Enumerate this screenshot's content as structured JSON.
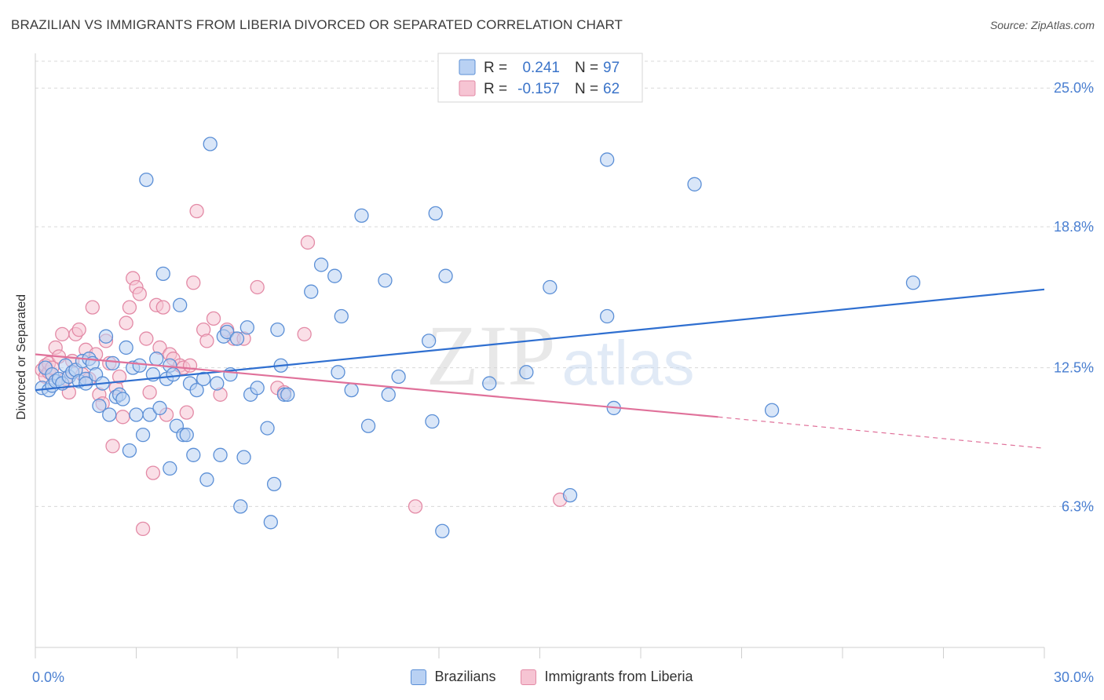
{
  "title": "BRAZILIAN VS IMMIGRANTS FROM LIBERIA DIVORCED OR SEPARATED CORRELATION CHART",
  "source": "Source: ZipAtlas.com",
  "watermark": {
    "zip": "ZIP",
    "atlas": "atlas"
  },
  "colors": {
    "blue_fill": "#b9d1f3",
    "blue_stroke": "#5b8fd6",
    "blue_line": "#2f6fd0",
    "pink_fill": "#f6c4d3",
    "pink_stroke": "#e38aa6",
    "pink_line": "#e0719a",
    "axis_label": "#4a7fd1",
    "grid": "#d8d8d8"
  },
  "legend_box": {
    "rows": [
      {
        "r_label": "R =",
        "r_value": "0.241",
        "n_label": "N =",
        "n_value": "97",
        "series": "blue"
      },
      {
        "r_label": "R =",
        "r_value": "-0.157",
        "n_label": "N =",
        "n_value": "62",
        "series": "pink"
      }
    ]
  },
  "bottom_legend": {
    "items": [
      {
        "label": "Brazilians",
        "series": "blue"
      },
      {
        "label": "Immigrants from Liberia",
        "series": "pink"
      }
    ]
  },
  "chart_data": {
    "type": "scatter",
    "title": "BRAZILIAN VS IMMIGRANTS FROM LIBERIA DIVORCED OR SEPARATED CORRELATION CHART",
    "xlabel": "",
    "ylabel": "Divorced or Separated",
    "xlim": [
      0,
      30
    ],
    "ylim": [
      0,
      26.2
    ],
    "x_tick_labels": [
      {
        "value": 0,
        "label": "0.0%"
      },
      {
        "value": 30,
        "label": "30.0%"
      }
    ],
    "y_ticks": [
      {
        "value": 6.3,
        "label": "6.3%"
      },
      {
        "value": 12.5,
        "label": "12.5%"
      },
      {
        "value": 18.8,
        "label": "18.8%"
      },
      {
        "value": 25.0,
        "label": "25.0%"
      }
    ],
    "grid": "horizontal dashed",
    "legend_position": "top-center",
    "series": [
      {
        "name": "Brazilians",
        "color": "blue",
        "trend": {
          "x": [
            0,
            30
          ],
          "y": [
            11.5,
            16.0
          ]
        },
        "points": [
          [
            0.2,
            11.6
          ],
          [
            0.3,
            12.5
          ],
          [
            0.4,
            11.5
          ],
          [
            0.5,
            12.2
          ],
          [
            0.5,
            11.7
          ],
          [
            0.6,
            11.9
          ],
          [
            0.7,
            12.0
          ],
          [
            0.8,
            11.8
          ],
          [
            0.9,
            12.6
          ],
          [
            1.0,
            12.1
          ],
          [
            1.1,
            12.3
          ],
          [
            1.2,
            12.4
          ],
          [
            1.3,
            11.9
          ],
          [
            1.4,
            12.8
          ],
          [
            1.5,
            12.0
          ],
          [
            1.5,
            11.8
          ],
          [
            1.6,
            12.9
          ],
          [
            1.7,
            12.7
          ],
          [
            1.8,
            12.2
          ],
          [
            1.9,
            10.8
          ],
          [
            2.0,
            11.8
          ],
          [
            2.1,
            13.9
          ],
          [
            2.2,
            10.4
          ],
          [
            2.3,
            12.7
          ],
          [
            2.4,
            11.2
          ],
          [
            2.5,
            11.3
          ],
          [
            2.6,
            11.1
          ],
          [
            2.7,
            13.4
          ],
          [
            2.8,
            8.8
          ],
          [
            2.9,
            12.5
          ],
          [
            3.0,
            10.4
          ],
          [
            3.1,
            12.6
          ],
          [
            3.2,
            9.5
          ],
          [
            3.3,
            20.9
          ],
          [
            3.4,
            10.4
          ],
          [
            3.5,
            12.2
          ],
          [
            3.6,
            12.9
          ],
          [
            3.7,
            10.7
          ],
          [
            3.8,
            16.7
          ],
          [
            3.9,
            12.0
          ],
          [
            4.0,
            8.0
          ],
          [
            4.0,
            12.6
          ],
          [
            4.1,
            12.2
          ],
          [
            4.2,
            9.9
          ],
          [
            4.3,
            15.3
          ],
          [
            4.4,
            9.5
          ],
          [
            4.5,
            9.5
          ],
          [
            4.6,
            11.8
          ],
          [
            4.7,
            8.6
          ],
          [
            4.8,
            11.5
          ],
          [
            5.0,
            12.0
          ],
          [
            5.1,
            7.5
          ],
          [
            5.2,
            22.5
          ],
          [
            5.4,
            11.8
          ],
          [
            5.5,
            8.6
          ],
          [
            5.6,
            13.9
          ],
          [
            5.7,
            14.1
          ],
          [
            5.8,
            12.2
          ],
          [
            6.0,
            13.8
          ],
          [
            6.1,
            6.3
          ],
          [
            6.2,
            8.5
          ],
          [
            6.3,
            14.3
          ],
          [
            6.4,
            11.3
          ],
          [
            6.6,
            11.6
          ],
          [
            6.9,
            9.8
          ],
          [
            7.0,
            5.6
          ],
          [
            7.1,
            7.3
          ],
          [
            7.2,
            14.2
          ],
          [
            7.3,
            12.6
          ],
          [
            7.4,
            11.3
          ],
          [
            7.5,
            11.3
          ],
          [
            8.2,
            15.9
          ],
          [
            8.5,
            17.1
          ],
          [
            8.9,
            16.6
          ],
          [
            9.0,
            12.3
          ],
          [
            9.1,
            14.8
          ],
          [
            9.4,
            11.5
          ],
          [
            9.7,
            19.3
          ],
          [
            9.9,
            9.9
          ],
          [
            10.4,
            16.4
          ],
          [
            10.5,
            11.3
          ],
          [
            10.8,
            12.1
          ],
          [
            11.7,
            13.7
          ],
          [
            11.8,
            10.1
          ],
          [
            11.9,
            19.4
          ],
          [
            12.1,
            5.2
          ],
          [
            12.2,
            16.6
          ],
          [
            13.5,
            11.8
          ],
          [
            14.6,
            12.3
          ],
          [
            15.3,
            16.1
          ],
          [
            15.9,
            6.8
          ],
          [
            17.0,
            21.8
          ],
          [
            17.0,
            14.8
          ],
          [
            17.2,
            10.7
          ],
          [
            19.6,
            20.7
          ],
          [
            21.9,
            10.6
          ],
          [
            26.1,
            16.3
          ]
        ]
      },
      {
        "name": "Immigrants from Liberia",
        "color": "pink",
        "trend": {
          "x": [
            0,
            20.3
          ],
          "y": [
            13.1,
            10.3
          ]
        },
        "trend_dashed_extension": {
          "x": [
            20.3,
            30
          ],
          "y": [
            10.3,
            8.9
          ]
        },
        "points": [
          [
            0.2,
            12.4
          ],
          [
            0.3,
            12.6
          ],
          [
            0.3,
            12.1
          ],
          [
            0.4,
            12.3
          ],
          [
            0.4,
            12.7
          ],
          [
            0.5,
            12.5
          ],
          [
            0.6,
            13.4
          ],
          [
            0.7,
            13.0
          ],
          [
            0.8,
            14.0
          ],
          [
            0.9,
            12.0
          ],
          [
            1.0,
            11.4
          ],
          [
            1.1,
            12.8
          ],
          [
            1.2,
            14.0
          ],
          [
            1.3,
            14.2
          ],
          [
            1.4,
            12.2
          ],
          [
            1.5,
            13.3
          ],
          [
            1.6,
            12.0
          ],
          [
            1.7,
            15.2
          ],
          [
            1.8,
            13.1
          ],
          [
            1.9,
            11.3
          ],
          [
            2.0,
            10.9
          ],
          [
            2.1,
            13.7
          ],
          [
            2.2,
            12.7
          ],
          [
            2.3,
            9.0
          ],
          [
            2.4,
            11.6
          ],
          [
            2.5,
            12.1
          ],
          [
            2.6,
            10.3
          ],
          [
            2.7,
            14.5
          ],
          [
            2.8,
            15.2
          ],
          [
            2.9,
            16.5
          ],
          [
            3.0,
            16.1
          ],
          [
            3.1,
            15.8
          ],
          [
            3.2,
            5.3
          ],
          [
            3.3,
            13.8
          ],
          [
            3.4,
            11.4
          ],
          [
            3.5,
            7.8
          ],
          [
            3.6,
            15.3
          ],
          [
            3.7,
            13.4
          ],
          [
            3.8,
            15.2
          ],
          [
            3.9,
            10.4
          ],
          [
            4.0,
            13.1
          ],
          [
            4.1,
            12.9
          ],
          [
            4.3,
            12.6
          ],
          [
            4.4,
            12.5
          ],
          [
            4.5,
            10.5
          ],
          [
            4.6,
            12.6
          ],
          [
            4.7,
            16.3
          ],
          [
            4.8,
            19.5
          ],
          [
            5.0,
            14.2
          ],
          [
            5.1,
            13.7
          ],
          [
            5.3,
            14.7
          ],
          [
            5.5,
            11.3
          ],
          [
            5.7,
            14.2
          ],
          [
            5.9,
            13.8
          ],
          [
            6.2,
            13.8
          ],
          [
            6.6,
            16.1
          ],
          [
            7.2,
            11.6
          ],
          [
            7.4,
            11.4
          ],
          [
            8.0,
            14.0
          ],
          [
            8.1,
            18.1
          ],
          [
            11.3,
            6.3
          ],
          [
            15.6,
            6.6
          ]
        ]
      }
    ]
  }
}
